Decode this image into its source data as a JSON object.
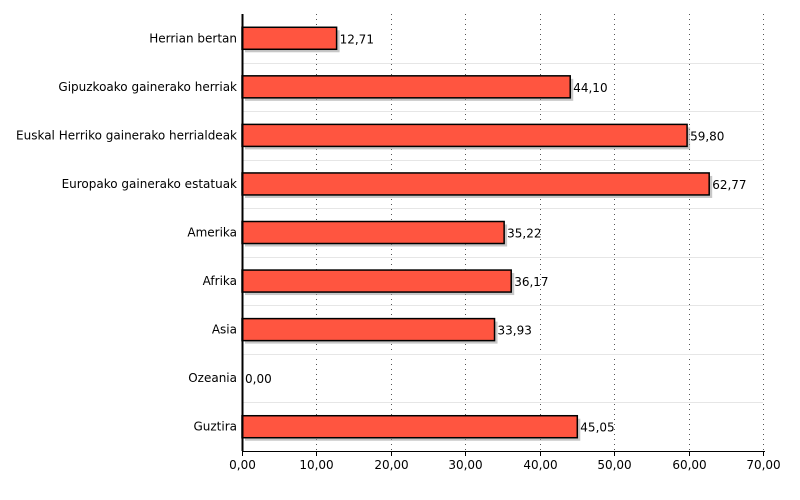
{
  "chart_data": {
    "type": "bar",
    "orientation": "horizontal",
    "categories": [
      "Herrian bertan",
      "Gipuzkoako gainerako herriak",
      "Euskal Herriko gainerako herrialdeak",
      "Europako gainerako estatuak",
      "Amerika",
      "Afrika",
      "Asia",
      "Ozeania",
      "Guztira"
    ],
    "values": [
      12.71,
      44.1,
      59.8,
      62.77,
      35.22,
      36.17,
      33.93,
      0.0,
      45.05
    ],
    "value_labels": [
      "12,71",
      "44,10",
      "59,80",
      "62,77",
      "35,22",
      "36,17",
      "33,93",
      "0,00",
      "45,05"
    ],
    "xlim": [
      0,
      70
    ],
    "xticks": [
      0,
      10,
      20,
      30,
      40,
      50,
      60,
      70
    ],
    "xtick_labels": [
      "0,00",
      "10,00",
      "20,00",
      "30,00",
      "40,00",
      "50,00",
      "60,00",
      "70,00"
    ],
    "grid": "vertical-dotted",
    "bar_color": "#ff5540",
    "bar_edge_color": "#000000",
    "shadow_color": "#999999",
    "title": "",
    "xlabel": "",
    "ylabel": ""
  }
}
